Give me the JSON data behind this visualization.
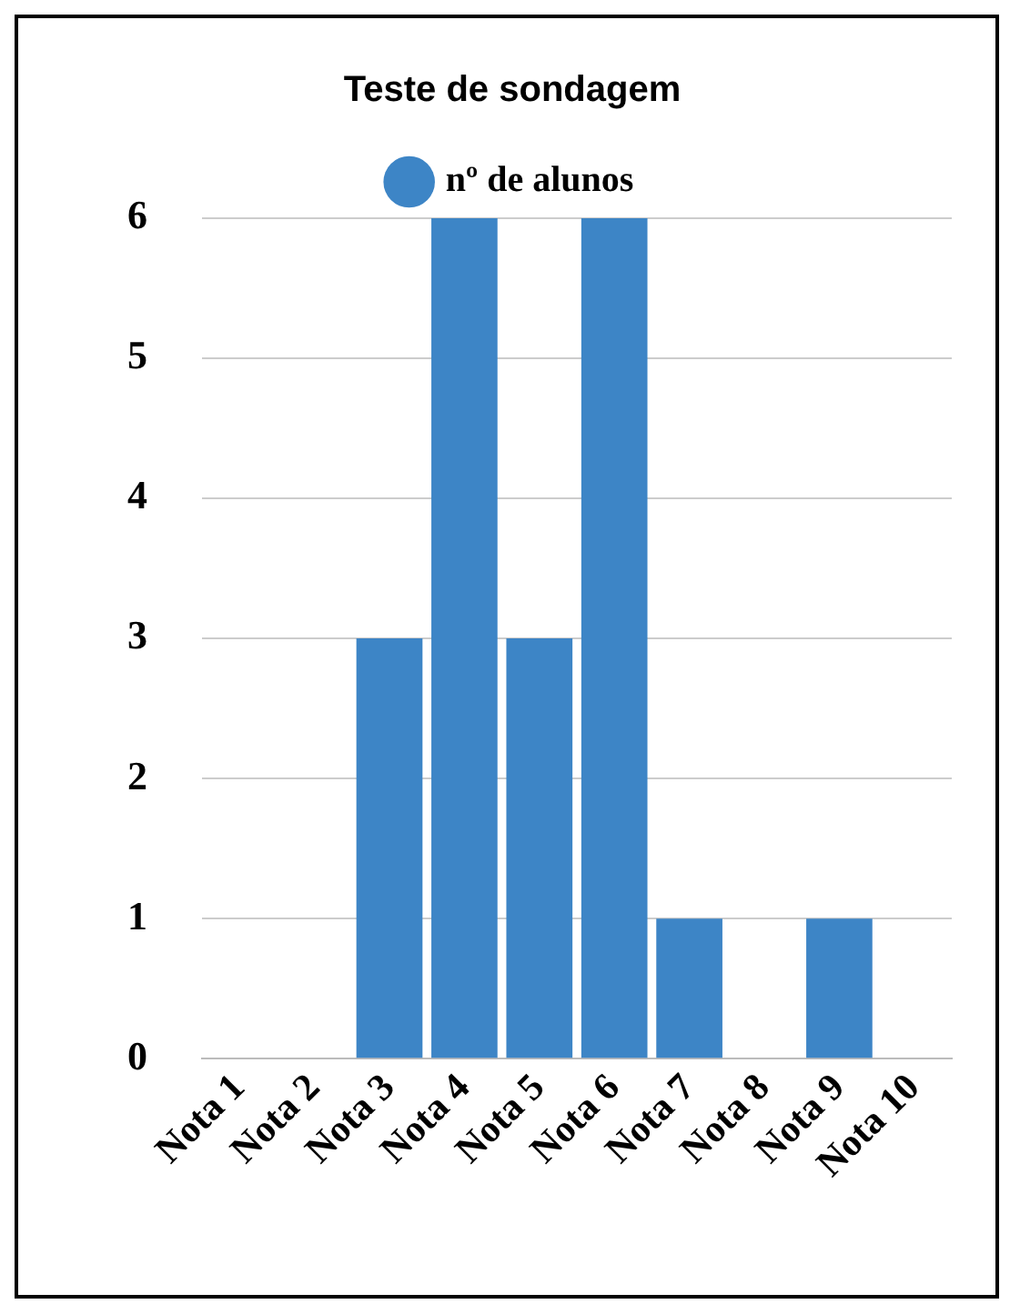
{
  "chart_data": {
    "type": "bar",
    "title": "Teste de sondagem",
    "categories": [
      "Nota 1",
      "Nota 2",
      "Nota 3",
      "Nota 4",
      "Nota 5",
      "Nota 6",
      "Nota 7",
      "Nota 8",
      "Nota 9",
      "Nota 10"
    ],
    "series": [
      {
        "name": "nº de alunos",
        "color": "#3d85c6",
        "values": [
          0,
          0,
          3,
          6,
          3,
          6,
          1,
          0,
          1,
          0
        ]
      }
    ],
    "ylim": [
      0,
      6
    ],
    "yticks": [
      0,
      1,
      2,
      3,
      4,
      5,
      6
    ],
    "grid": "y",
    "legend": "top"
  }
}
